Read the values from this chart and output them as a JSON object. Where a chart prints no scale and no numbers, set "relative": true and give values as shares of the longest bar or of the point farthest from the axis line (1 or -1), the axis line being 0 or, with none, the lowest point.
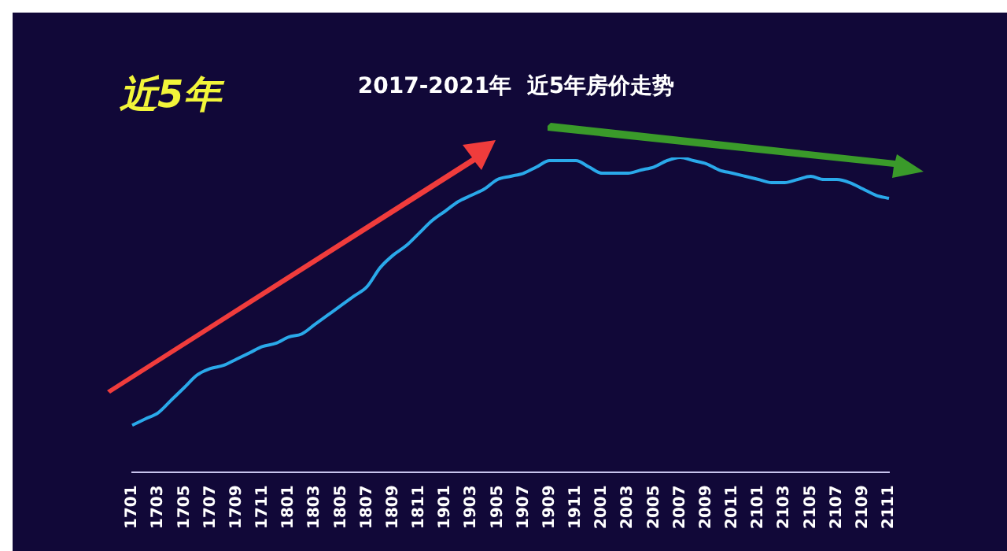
{
  "chart_data": {
    "type": "line",
    "title": "2017-2021年  近5年房价走势",
    "annotations": [
      "近5年"
    ],
    "relative": true,
    "grid": false,
    "legend": false,
    "marker": "none",
    "line_style": "solid",
    "categories": [
      "1701",
      null,
      "1703",
      null,
      "1705",
      null,
      "1707",
      null,
      "1709",
      null,
      "1711",
      null,
      "1801",
      null,
      "1803",
      null,
      "1805",
      null,
      "1807",
      null,
      "1809",
      null,
      "1811",
      null,
      "1901",
      null,
      "1903",
      null,
      "1905",
      null,
      "1907",
      null,
      "1909",
      null,
      "1911",
      null,
      "2001",
      null,
      "2003",
      null,
      "2005",
      null,
      "2007",
      null,
      "2009",
      null,
      "2011",
      null,
      "2101",
      null,
      "2103",
      null,
      "2105",
      null,
      "2107",
      null,
      "2109",
      null,
      "2111"
    ],
    "series": [
      {
        "color": "#2aa9ea",
        "values": [
          0.15,
          0.17,
          0.19,
          0.23,
          0.27,
          0.31,
          0.33,
          0.34,
          0.36,
          0.38,
          0.4,
          0.41,
          0.43,
          0.44,
          0.47,
          0.5,
          0.53,
          0.56,
          0.59,
          0.65,
          0.69,
          0.72,
          0.76,
          0.8,
          0.83,
          0.86,
          0.88,
          0.9,
          0.93,
          0.94,
          0.95,
          0.97,
          0.99,
          0.99,
          0.99,
          0.97,
          0.95,
          0.95,
          0.95,
          0.96,
          0.97,
          0.99,
          1,
          0.99,
          0.98,
          0.96,
          0.95,
          0.94,
          0.93,
          0.92,
          0.92,
          0.93,
          0.94,
          0.93,
          0.93,
          0.92,
          0.9,
          0.88,
          0.87
        ]
      }
    ]
  }
}
